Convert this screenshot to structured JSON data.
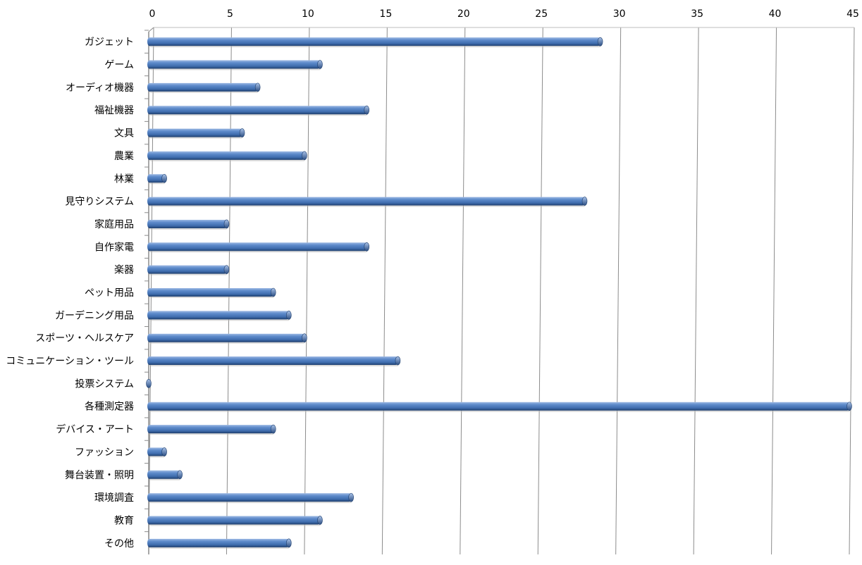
{
  "chart_data": {
    "type": "bar",
    "orientation": "horizontal",
    "style": "3d-cylinder",
    "title": "",
    "xlabel": "",
    "ylabel": "",
    "xlim": [
      0,
      45
    ],
    "x_ticks": [
      "0",
      "5",
      "10",
      "15",
      "20",
      "25",
      "30",
      "35",
      "40",
      "45"
    ],
    "x_axis_position": "top",
    "grid": "vertical",
    "legend": "none",
    "bar_color": "#4F81BD",
    "categories": [
      "ガジェット",
      "ゲーム",
      "オーディオ機器",
      "福祉機器",
      "文具",
      "農業",
      "林業",
      "見守りシステム",
      "家庭用品",
      "自作家電",
      "楽器",
      "ペット用品",
      "ガーデニング用品",
      "スポーツ・ヘルスケア",
      "コミュニケーション・ツール",
      "投票システム",
      "各種測定器",
      "デバイス・アート",
      "ファッション",
      "舞台装置・照明",
      "環境調査",
      "教育",
      "その他"
    ],
    "values": [
      29,
      11,
      7,
      14,
      6,
      10,
      1,
      28,
      5,
      14,
      5,
      8,
      9,
      10,
      16,
      0,
      45,
      8,
      1,
      2,
      13,
      11,
      9
    ]
  }
}
